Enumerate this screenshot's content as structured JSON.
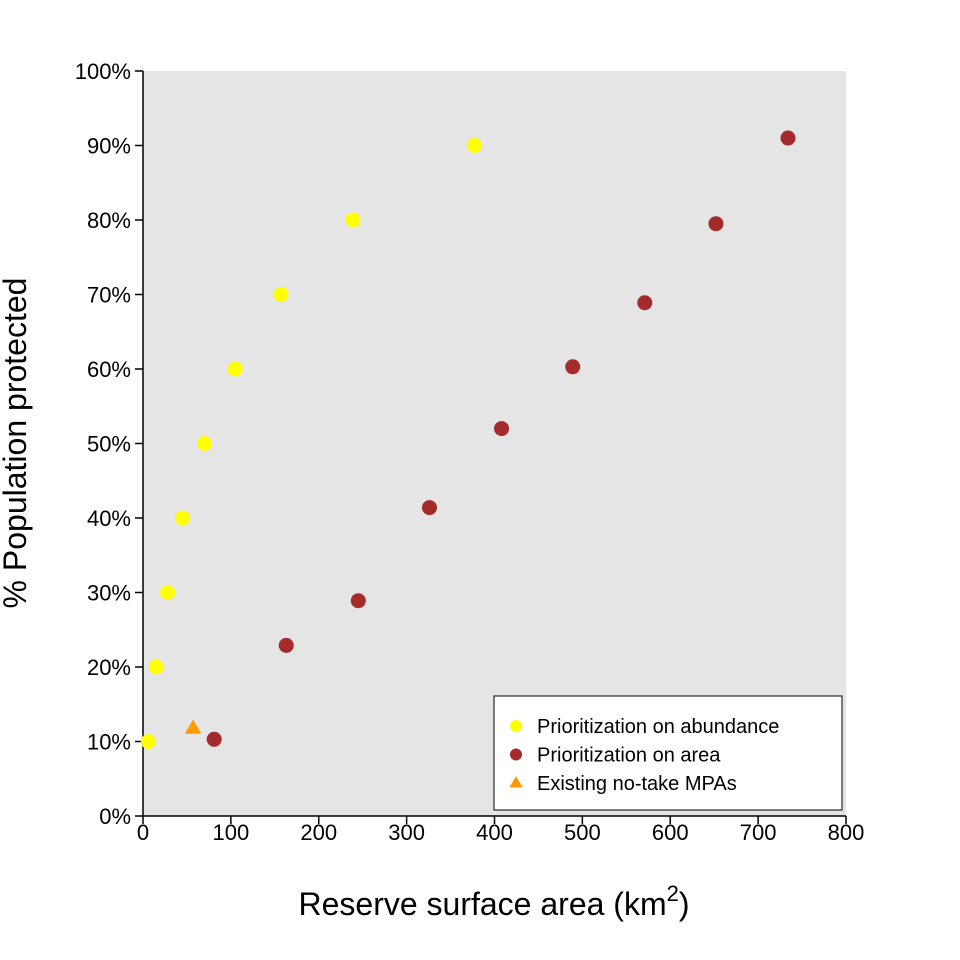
{
  "chart_data": {
    "type": "scatter",
    "xlabel": "Reserve surface area (km",
    "xlabel_superscript": "2",
    "xlabel_suffix": ")",
    "ylabel": "% Population protected",
    "xlim": [
      0,
      800
    ],
    "ylim": [
      0,
      100
    ],
    "x_ticks": [
      0,
      100,
      200,
      300,
      400,
      500,
      600,
      700,
      800
    ],
    "y_ticks": [
      0,
      10,
      20,
      30,
      40,
      50,
      60,
      70,
      80,
      90,
      100
    ],
    "y_tick_labels": [
      "0%",
      "10%",
      "20%",
      "30%",
      "40%",
      "50%",
      "60%",
      "70%",
      "80%",
      "90%",
      "100%"
    ],
    "grid": false,
    "legend_position": "bottom-right",
    "series": [
      {
        "name": "Prioritization on abundance",
        "marker": "circle",
        "color": "#ffff00",
        "points": [
          {
            "x": 6,
            "y": 10
          },
          {
            "x": 15,
            "y": 20
          },
          {
            "x": 28,
            "y": 30
          },
          {
            "x": 45,
            "y": 40
          },
          {
            "x": 70,
            "y": 50
          },
          {
            "x": 105,
            "y": 60
          },
          {
            "x": 157,
            "y": 70
          },
          {
            "x": 239,
            "y": 80
          },
          {
            "x": 377,
            "y": 90
          }
        ]
      },
      {
        "name": "Prioritization on area",
        "marker": "circle",
        "color": "#a52a2a",
        "points": [
          {
            "x": 81,
            "y": 10.3
          },
          {
            "x": 163,
            "y": 22.9
          },
          {
            "x": 245,
            "y": 28.9
          },
          {
            "x": 326,
            "y": 41.4
          },
          {
            "x": 408,
            "y": 52
          },
          {
            "x": 489,
            "y": 60.3
          },
          {
            "x": 571,
            "y": 68.9
          },
          {
            "x": 652,
            "y": 79.5
          },
          {
            "x": 734,
            "y": 91
          }
        ]
      },
      {
        "name": "Existing no-take MPAs",
        "marker": "triangle",
        "color": "#ff9900",
        "points": [
          {
            "x": 57,
            "y": 11.8
          }
        ]
      }
    ]
  }
}
